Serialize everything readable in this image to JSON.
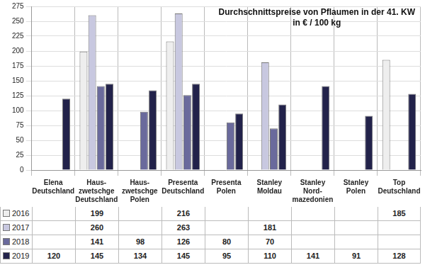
{
  "chart_data": {
    "type": "bar",
    "title": "Durchschnittspreise von Pflaumen in der 41. KW",
    "subtitle": "in € / 100 kg",
    "categories": [
      [
        "Elena",
        "Deutschland"
      ],
      [
        "Haus-",
        "zwetschge",
        "Deutschland"
      ],
      [
        "Haus-",
        "zwetschge",
        "Polen"
      ],
      [
        "Presenta",
        "Deutschland"
      ],
      [
        "Presenta",
        "Polen"
      ],
      [
        "Stanley",
        "Moldau"
      ],
      [
        "Stanley",
        "Nord-",
        "mazedonien"
      ],
      [
        "Stanley",
        "Polen"
      ],
      [
        "Top",
        "Deutschland"
      ]
    ],
    "series": [
      {
        "name": "2016",
        "color": "#eeeeee",
        "values": [
          null,
          199,
          null,
          216,
          null,
          null,
          null,
          null,
          185
        ]
      },
      {
        "name": "2017",
        "color": "#c8c8e0",
        "values": [
          null,
          260,
          null,
          263,
          null,
          181,
          null,
          null,
          null
        ]
      },
      {
        "name": "2018",
        "color": "#6a6a9c",
        "values": [
          null,
          141,
          98,
          126,
          80,
          70,
          null,
          null,
          null
        ]
      },
      {
        "name": "2019",
        "color": "#22224a",
        "values": [
          120,
          145,
          134,
          145,
          95,
          110,
          141,
          91,
          128
        ]
      }
    ],
    "ylim": [
      0,
      275
    ],
    "yticks": [
      0,
      25,
      50,
      75,
      100,
      125,
      150,
      175,
      200,
      225,
      250,
      275
    ],
    "grid": true
  }
}
